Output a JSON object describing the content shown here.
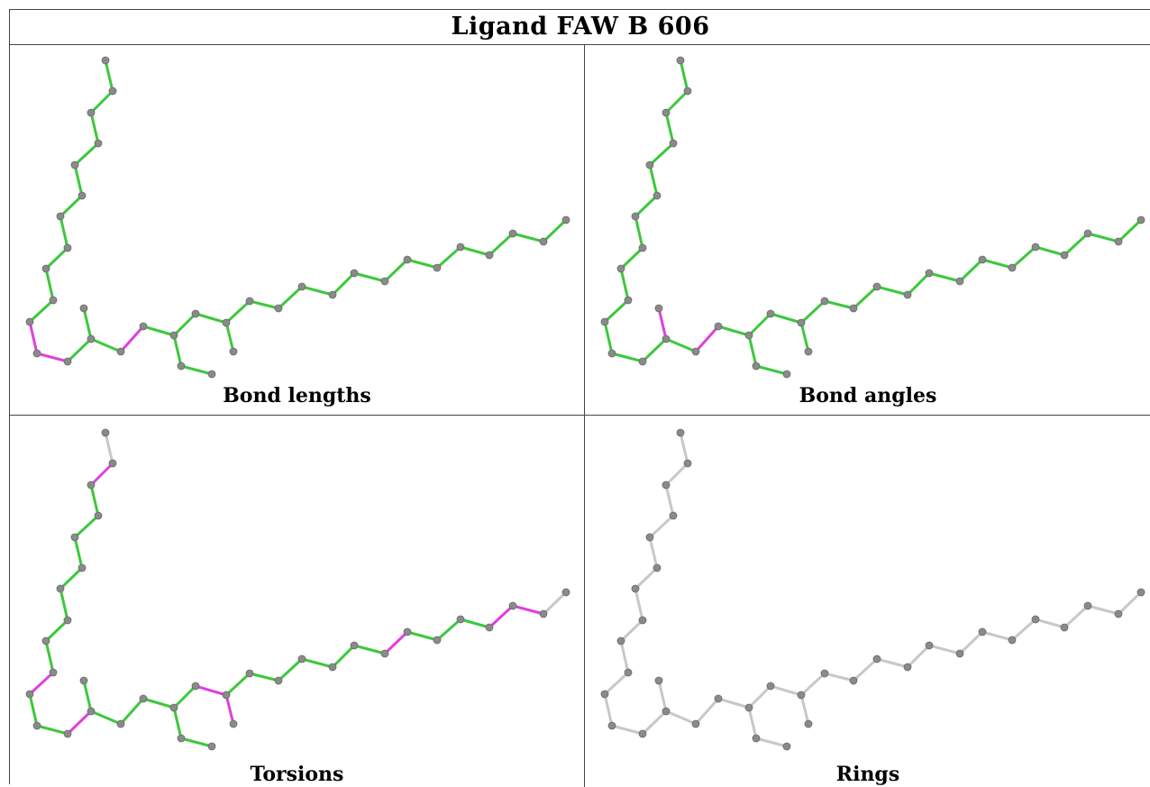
{
  "title": "Ligand FAW B 606",
  "colors": {
    "ok": "#3dc83d",
    "outlier": "#e040e0",
    "none": "#c8c8c8",
    "atom": "#8a8a8a"
  },
  "panels": [
    {
      "caption": "Bond lengths",
      "highlighted_bonds": [
        [
          10,
          11
        ],
        [
          11,
          12
        ],
        [
          14,
          15
        ],
        [
          15,
          16
        ]
      ],
      "uncolored_bonds": []
    },
    {
      "caption": "Bond angles",
      "highlighted_bonds": [
        [
          13,
          14
        ],
        [
          14,
          15
        ],
        [
          15,
          16
        ]
      ],
      "uncolored_bonds": []
    },
    {
      "caption": "Torsions",
      "highlighted_bonds": [
        [
          1,
          2
        ],
        [
          9,
          10
        ],
        [
          12,
          13
        ],
        [
          14,
          15
        ],
        [
          20,
          21
        ],
        [
          21,
          22
        ],
        [
          28,
          29
        ],
        [
          32,
          33
        ],
        [
          33,
          34
        ]
      ],
      "uncolored_bonds": [
        [
          0,
          1
        ],
        [
          13,
          19
        ],
        [
          14,
          20
        ],
        [
          15,
          17
        ],
        [
          34,
          35
        ]
      ]
    },
    {
      "caption": "Rings",
      "highlighted_bonds": [],
      "uncolored_bonds": "all"
    }
  ]
}
